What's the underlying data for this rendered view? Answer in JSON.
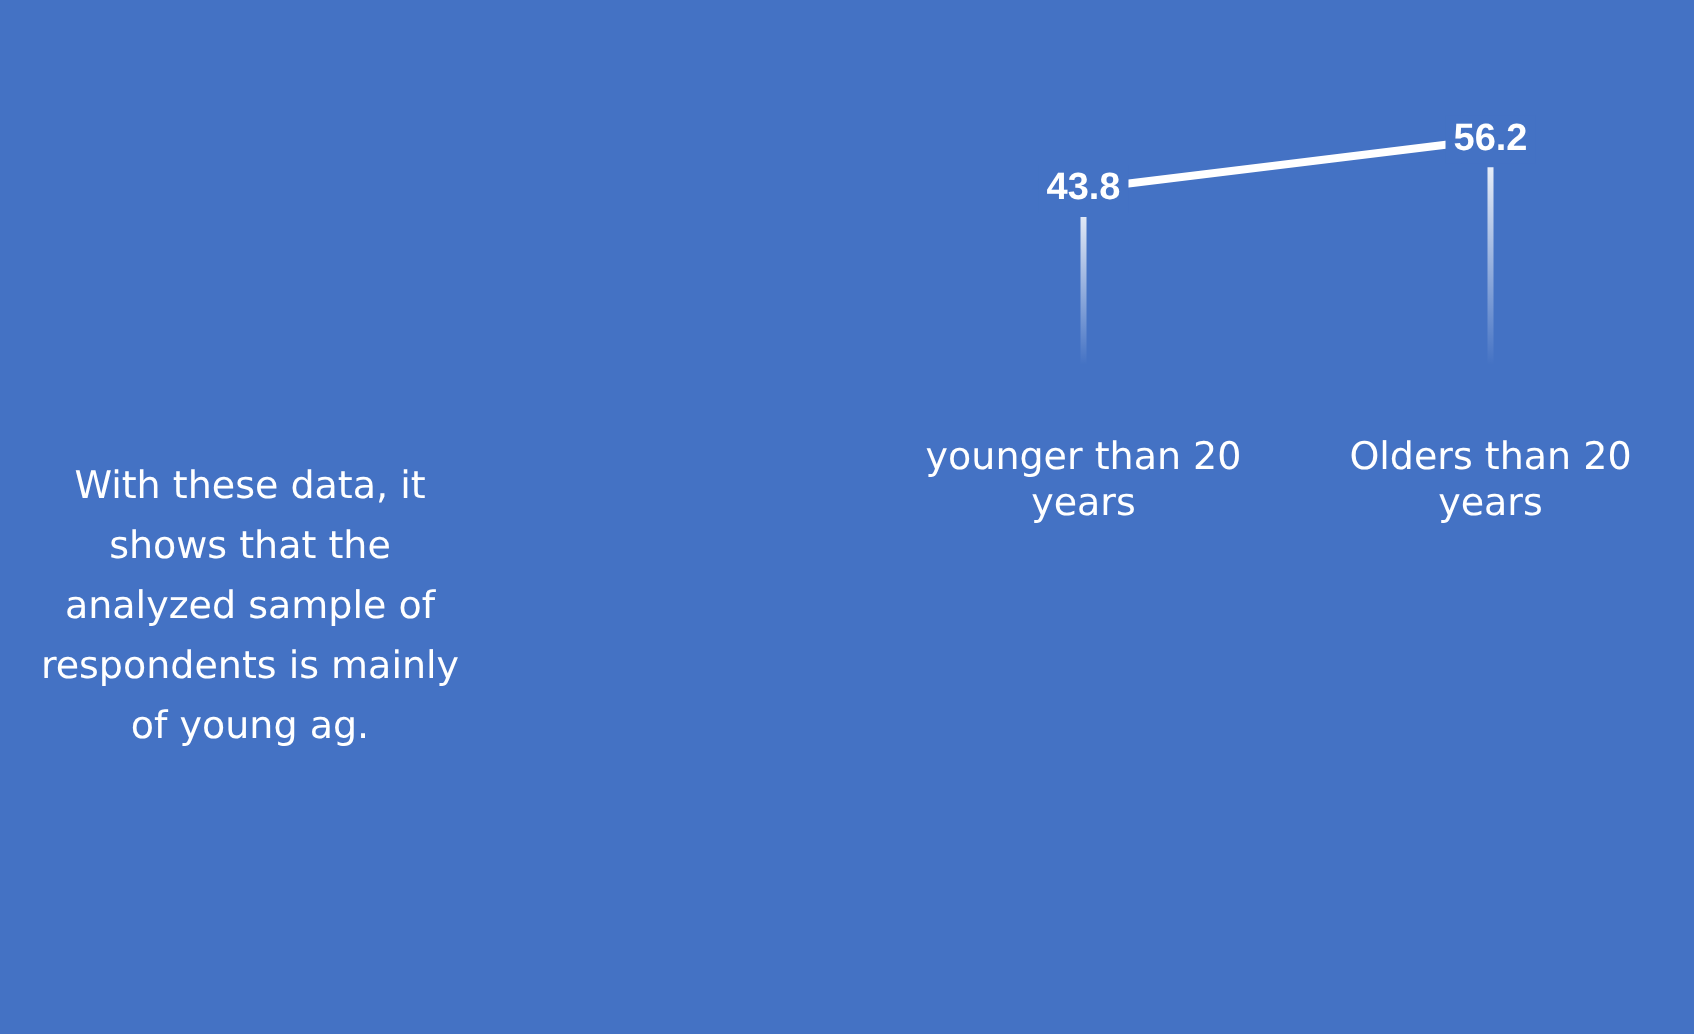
{
  "chart_data": {
    "type": "line",
    "categories": [
      "younger than 20 years",
      "Olders than 20 years"
    ],
    "values": [
      43.8,
      56.2
    ],
    "color": "#ffffff",
    "data_labels": true,
    "annotations": [
      "With these data, it shows that the analyzed sample of respondents is mainly of young ag."
    ]
  }
}
